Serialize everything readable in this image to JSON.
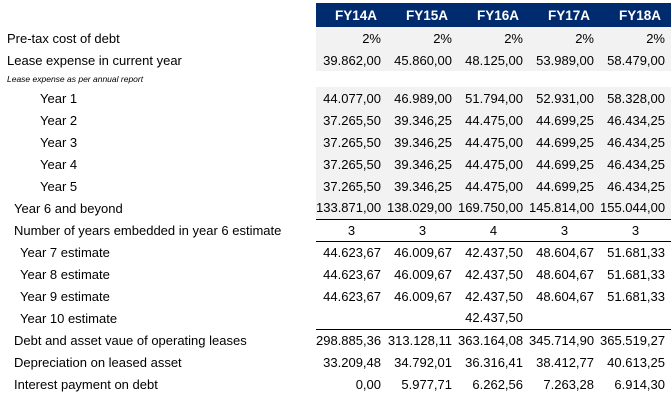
{
  "header": {
    "years": [
      "FY14A",
      "FY15A",
      "FY16A",
      "FY17A",
      "FY18A"
    ]
  },
  "rows": {
    "pretax_cost_of_debt": {
      "label": "Pre-tax cost of debt",
      "values": [
        "2%",
        "2%",
        "2%",
        "2%",
        "2%"
      ]
    },
    "lease_expense_current": {
      "label": "Lease expense in current year",
      "values": [
        "39.862,00",
        "45.860,00",
        "48.125,00",
        "53.989,00",
        "58.479,00"
      ]
    },
    "lease_expense_note": {
      "label": "Lease expense as per annual report"
    },
    "year1": {
      "label": "Year 1",
      "values": [
        "44.077,00",
        "46.989,00",
        "51.794,00",
        "52.931,00",
        "58.328,00"
      ]
    },
    "year2": {
      "label": "Year 2",
      "values": [
        "37.265,50",
        "39.346,25",
        "44.475,00",
        "44.699,25",
        "46.434,25"
      ]
    },
    "year3": {
      "label": "Year 3",
      "values": [
        "37.265,50",
        "39.346,25",
        "44.475,00",
        "44.699,25",
        "46.434,25"
      ]
    },
    "year4": {
      "label": "Year 4",
      "values": [
        "37.265,50",
        "39.346,25",
        "44.475,00",
        "44.699,25",
        "46.434,25"
      ]
    },
    "year5": {
      "label": "Year 5",
      "values": [
        "37.265,50",
        "39.346,25",
        "44.475,00",
        "44.699,25",
        "46.434,25"
      ]
    },
    "year6_beyond": {
      "label": "Year 6 and beyond",
      "values": [
        "133.871,00",
        "138.029,00",
        "169.750,00",
        "145.814,00",
        "155.044,00"
      ]
    },
    "num_years_embedded": {
      "label": "Number of years embedded in year 6 estimate",
      "values": [
        "3",
        "3",
        "4",
        "3",
        "3"
      ]
    },
    "year7_estimate": {
      "label": "Year 7 estimate",
      "values": [
        "44.623,67",
        "46.009,67",
        "42.437,50",
        "48.604,67",
        "51.681,33"
      ]
    },
    "year8_estimate": {
      "label": "Year 8 estimate",
      "values": [
        "44.623,67",
        "46.009,67",
        "42.437,50",
        "48.604,67",
        "51.681,33"
      ]
    },
    "year9_estimate": {
      "label": "Year 9 estimate",
      "values": [
        "44.623,67",
        "46.009,67",
        "42.437,50",
        "48.604,67",
        "51.681,33"
      ]
    },
    "year10_estimate": {
      "label": "Year 10 estimate",
      "values": [
        "",
        "",
        "42.437,50",
        "",
        ""
      ]
    },
    "debt_asset_value": {
      "label": "Debt and asset vaue of operating leases",
      "values": [
        "298.885,36",
        "313.128,11",
        "363.164,08",
        "345.714,90",
        "365.519,27"
      ]
    },
    "depreciation": {
      "label": "Depreciation on leased asset",
      "values": [
        "33.209,48",
        "34.792,01",
        "36.316,41",
        "38.412,77",
        "40.613,25"
      ]
    },
    "interest_payment": {
      "label": "Interest payment on debt",
      "values": [
        "0,00",
        "5.977,71",
        "6.262,56",
        "7.263,28",
        "6.914,30"
      ]
    }
  }
}
